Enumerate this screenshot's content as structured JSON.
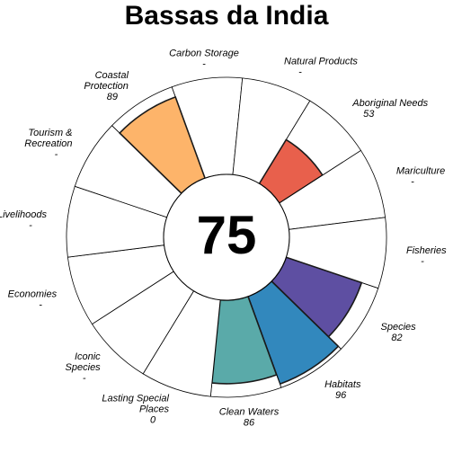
{
  "title": "Bassas da India",
  "score": "75",
  "chart_data": {
    "type": "flower-plot",
    "title": "Bassas da India",
    "center_score": 75,
    "max_value": 100,
    "petals": [
      {
        "label": [
          "Carbon Storage"
        ],
        "value_text": "-",
        "value": null,
        "color": "#FFFFFF"
      },
      {
        "label": [
          "Natural Products"
        ],
        "value_text": "-",
        "value": null,
        "color": "#FFFFFF"
      },
      {
        "label": [
          "Aboriginal Needs"
        ],
        "value_text": "53",
        "value": 53,
        "color": "#E8604C"
      },
      {
        "label": [
          "Mariculture"
        ],
        "value_text": "-",
        "value": null,
        "color": "#FFFFFF"
      },
      {
        "label": [
          "Fisheries"
        ],
        "value_text": "-",
        "value": null,
        "color": "#FFFFFF"
      },
      {
        "label": [
          "Species"
        ],
        "value_text": "82",
        "value": 82,
        "color": "#5E4FA2"
      },
      {
        "label": [
          "Habitats"
        ],
        "value_text": "96",
        "value": 96,
        "color": "#3288BD"
      },
      {
        "label": [
          "Clean Waters"
        ],
        "value_text": "86",
        "value": 86,
        "color": "#5AAAA9"
      },
      {
        "label": [
          "Lasting Special",
          "Places"
        ],
        "value_text": "0",
        "value": 0,
        "color": "#FFFFFF"
      },
      {
        "label": [
          "Iconic",
          "Species"
        ],
        "value_text": "-",
        "value": null,
        "color": "#FFFFFF"
      },
      {
        "label": [
          "Economies"
        ],
        "value_text": "-",
        "value": null,
        "color": "#FFFFFF"
      },
      {
        "label": [
          "Livelihoods"
        ],
        "value_text": "-",
        "value": null,
        "color": "#FFFFFF"
      },
      {
        "label": [
          "Tourism &",
          "Recreation"
        ],
        "value_text": "-",
        "value": null,
        "color": "#FFFFFF"
      },
      {
        "label": [
          "Coastal",
          "Protection"
        ],
        "value_text": "89",
        "value": 89,
        "color": "#FDB46A"
      }
    ]
  }
}
